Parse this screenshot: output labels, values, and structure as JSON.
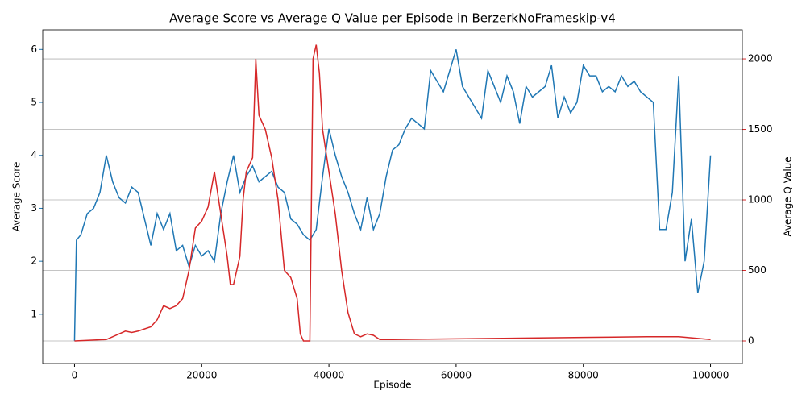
{
  "chart_data": {
    "type": "line",
    "title": "Average Score vs Average Q Value per Episode in BerzerkNoFrameskip-v4",
    "xlabel": "Episode",
    "ylabel": "Average Score",
    "y2label": "Average Q Value",
    "xlim": [
      -5000,
      105000
    ],
    "xticks": [
      0,
      20000,
      40000,
      60000,
      80000,
      100000
    ],
    "ylim": [
      0.07,
      6.37
    ],
    "yticks": [
      1,
      2,
      3,
      4,
      5,
      6
    ],
    "y2lim": [
      -160,
      2206
    ],
    "y2ticks": [
      0,
      500,
      1000,
      1500,
      2000
    ],
    "grid": "y2",
    "series": [
      {
        "name": "Average Score",
        "color": "#1f77b4",
        "x": [
          0,
          300,
          1000,
          2000,
          3000,
          4000,
          5000,
          6000,
          7000,
          8000,
          9000,
          10000,
          11000,
          12000,
          13000,
          14000,
          15000,
          16000,
          17000,
          18000,
          19000,
          20000,
          21000,
          22000,
          23000,
          24000,
          25000,
          26000,
          27000,
          28000,
          29000,
          30000,
          31000,
          32000,
          33000,
          34000,
          35000,
          36000,
          37000,
          38000,
          39000,
          40000,
          41000,
          42000,
          43000,
          44000,
          45000,
          46000,
          47000,
          48000,
          49000,
          50000,
          51000,
          52000,
          53000,
          54000,
          55000,
          56000,
          57000,
          58000,
          59000,
          60000,
          61000,
          62000,
          63000,
          64000,
          65000,
          66000,
          67000,
          68000,
          69000,
          70000,
          71000,
          72000,
          73000,
          74000,
          75000,
          76000,
          77000,
          78000,
          79000,
          80000,
          81000,
          82000,
          83000,
          84000,
          85000,
          86000,
          87000,
          88000,
          89000,
          90000,
          91000,
          92000,
          93000,
          94000,
          95000,
          96000,
          97000,
          98000,
          99000,
          100000
        ],
        "values": [
          0.5,
          2.4,
          2.5,
          2.9,
          3.0,
          3.3,
          4.0,
          3.5,
          3.2,
          3.1,
          3.4,
          3.3,
          2.8,
          2.3,
          2.9,
          2.6,
          2.9,
          2.2,
          2.3,
          1.9,
          2.3,
          2.1,
          2.2,
          2.0,
          2.9,
          3.5,
          4.0,
          3.3,
          3.6,
          3.8,
          3.5,
          3.6,
          3.7,
          3.4,
          3.3,
          2.8,
          2.7,
          2.5,
          2.4,
          2.6,
          3.6,
          4.5,
          4.0,
          3.6,
          3.3,
          2.9,
          2.6,
          3.2,
          2.6,
          2.9,
          3.6,
          4.1,
          4.2,
          4.5,
          4.7,
          4.6,
          4.5,
          5.6,
          5.4,
          5.2,
          5.6,
          6.0,
          5.3,
          5.1,
          4.9,
          4.7,
          5.6,
          5.3,
          5.0,
          5.5,
          5.2,
          4.6,
          5.3,
          5.1,
          5.2,
          5.3,
          5.7,
          4.7,
          5.1,
          4.8,
          5.0,
          5.7,
          5.5,
          5.5,
          5.2,
          5.3,
          5.2,
          5.5,
          5.3,
          5.4,
          5.2,
          5.1,
          5.0,
          2.6,
          2.6,
          3.3,
          5.5,
          2.0,
          2.8,
          1.4,
          2.0,
          4.0
        ]
      },
      {
        "name": "Average Q Value",
        "color": "#d62728",
        "axis": "y2",
        "x": [
          0,
          5000,
          7000,
          8000,
          9000,
          10000,
          12000,
          13000,
          14000,
          15000,
          16000,
          17000,
          18000,
          19000,
          20000,
          21000,
          22000,
          23000,
          24000,
          24500,
          25000,
          26000,
          26500,
          27000,
          28000,
          28500,
          29000,
          30000,
          31000,
          32000,
          33000,
          34000,
          35000,
          35500,
          36000,
          37000,
          37500,
          38000,
          38500,
          39000,
          40000,
          41000,
          42000,
          43000,
          44000,
          45000,
          46000,
          47000,
          48000,
          50000,
          80000,
          90000,
          95000,
          100000
        ],
        "values": [
          0,
          10,
          50,
          70,
          60,
          70,
          100,
          150,
          250,
          230,
          250,
          300,
          500,
          800,
          850,
          950,
          1200,
          900,
          600,
          400,
          400,
          600,
          1000,
          1200,
          1300,
          2000,
          1600,
          1500,
          1300,
          1000,
          500,
          450,
          300,
          50,
          0,
          0,
          2000,
          2100,
          1900,
          1500,
          1200,
          900,
          500,
          200,
          50,
          30,
          50,
          40,
          10,
          10,
          25,
          30,
          30,
          10
        ]
      }
    ]
  }
}
